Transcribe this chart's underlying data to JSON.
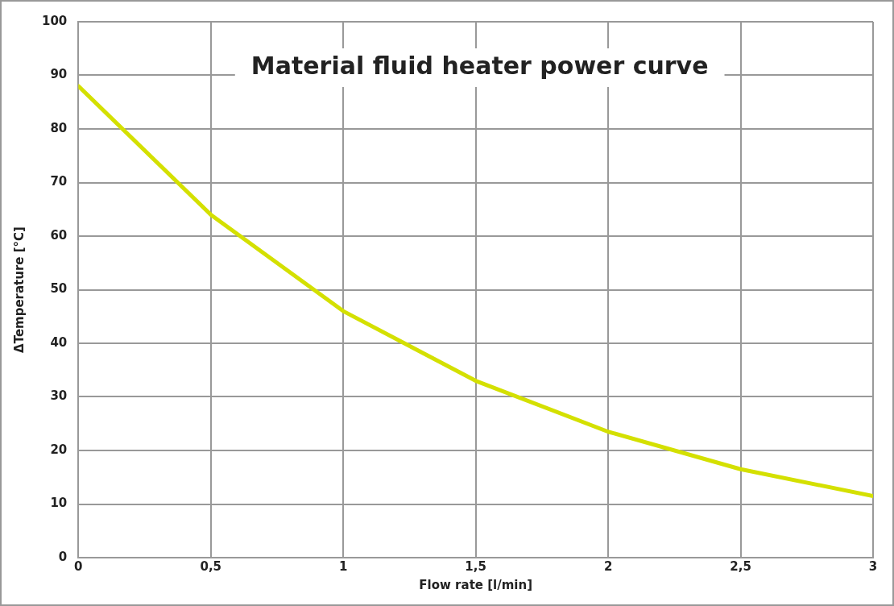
{
  "chart_data": {
    "type": "line",
    "title": "Material fluid heater power curve",
    "xlabel": "Flow rate [l/min]",
    "ylabel": "ΔTemperature [°C]",
    "x": [
      0,
      0.5,
      1,
      1.5,
      2,
      2.5,
      3
    ],
    "series": [
      {
        "color": "#d4e000",
        "values": [
          88,
          64,
          46,
          33,
          23.5,
          16.5,
          11.5
        ]
      }
    ],
    "xlim": [
      0,
      3
    ],
    "xticks": [
      0,
      {
        "value": 0.5,
        "label": "0,5"
      },
      1,
      {
        "value": 1.5,
        "label": "1,5"
      },
      2,
      {
        "value": 2.5,
        "label": "2,5"
      },
      3
    ],
    "ylim": [
      0,
      100
    ],
    "yticks": [
      0,
      10,
      20,
      30,
      40,
      50,
      60,
      70,
      80,
      90,
      100
    ],
    "grid": true,
    "marker": "none",
    "line_style": "solid"
  }
}
